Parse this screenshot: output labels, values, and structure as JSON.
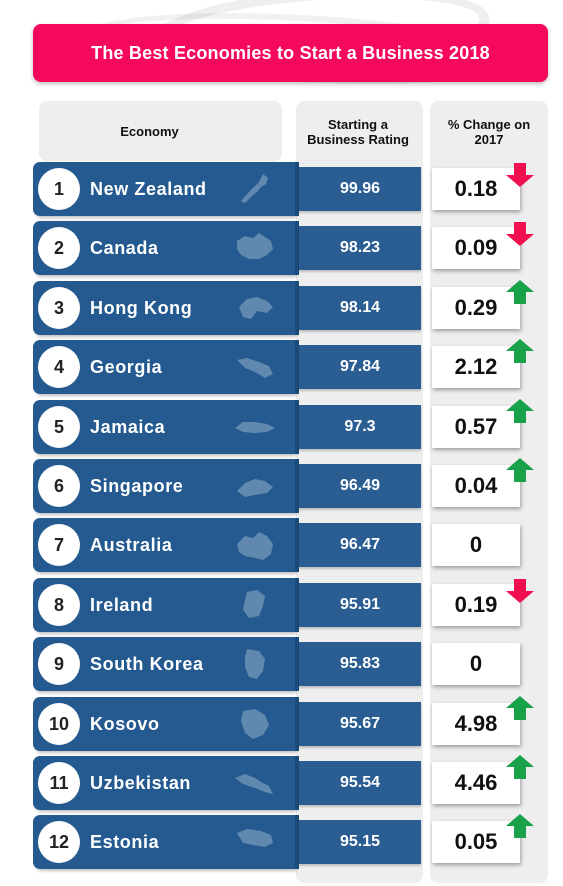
{
  "title": "The Best Economies to Start a Business 2018",
  "headers": {
    "economy": "Economy",
    "rating": "Starting a Business Rating",
    "change": "% Change on 2017"
  },
  "colors": {
    "title_bg": "#f5095d",
    "row_blue": "#245a8f",
    "arrow_up": "#1aa24a",
    "arrow_down": "#f0104f"
  },
  "chart_data": {
    "type": "table",
    "title": "The Best Economies to Start a Business 2018",
    "columns": [
      "Economy",
      "Starting a Business Rating",
      "% Change on 2017"
    ],
    "rows": [
      {
        "rank": "1",
        "economy": "New Zealand",
        "rating": "99.96",
        "change": "0.18",
        "direction": "down",
        "icon": "new-zealand-map-icon"
      },
      {
        "rank": "2",
        "economy": "Canada",
        "rating": "98.23",
        "change": "0.09",
        "direction": "down",
        "icon": "canada-map-icon"
      },
      {
        "rank": "3",
        "economy": "Hong Kong",
        "rating": "98.14",
        "change": "0.29",
        "direction": "up",
        "icon": "hong-kong-map-icon"
      },
      {
        "rank": "4",
        "economy": "Georgia",
        "rating": "97.84",
        "change": "2.12",
        "direction": "up",
        "icon": "georgia-map-icon"
      },
      {
        "rank": "5",
        "economy": "Jamaica",
        "rating": "97.3",
        "change": "0.57",
        "direction": "up",
        "icon": "jamaica-map-icon"
      },
      {
        "rank": "6",
        "economy": "Singapore",
        "rating": "96.49",
        "change": "0.04",
        "direction": "up",
        "icon": "singapore-map-icon"
      },
      {
        "rank": "7",
        "economy": "Australia",
        "rating": "96.47",
        "change": "0",
        "direction": "none",
        "icon": "australia-map-icon"
      },
      {
        "rank": "8",
        "economy": "Ireland",
        "rating": "95.91",
        "change": "0.19",
        "direction": "down",
        "icon": "ireland-map-icon"
      },
      {
        "rank": "9",
        "economy": "South Korea",
        "rating": "95.83",
        "change": "0",
        "direction": "none",
        "icon": "south-korea-map-icon"
      },
      {
        "rank": "10",
        "economy": "Kosovo",
        "rating": "95.67",
        "change": "4.98",
        "direction": "up",
        "icon": "kosovo-map-icon"
      },
      {
        "rank": "11",
        "economy": "Uzbekistan",
        "rating": "95.54",
        "change": "4.46",
        "direction": "up",
        "icon": "uzbekistan-map-icon"
      },
      {
        "rank": "12",
        "economy": "Estonia",
        "rating": "95.15",
        "change": "0.05",
        "direction": "up",
        "icon": "estonia-map-icon"
      }
    ]
  }
}
